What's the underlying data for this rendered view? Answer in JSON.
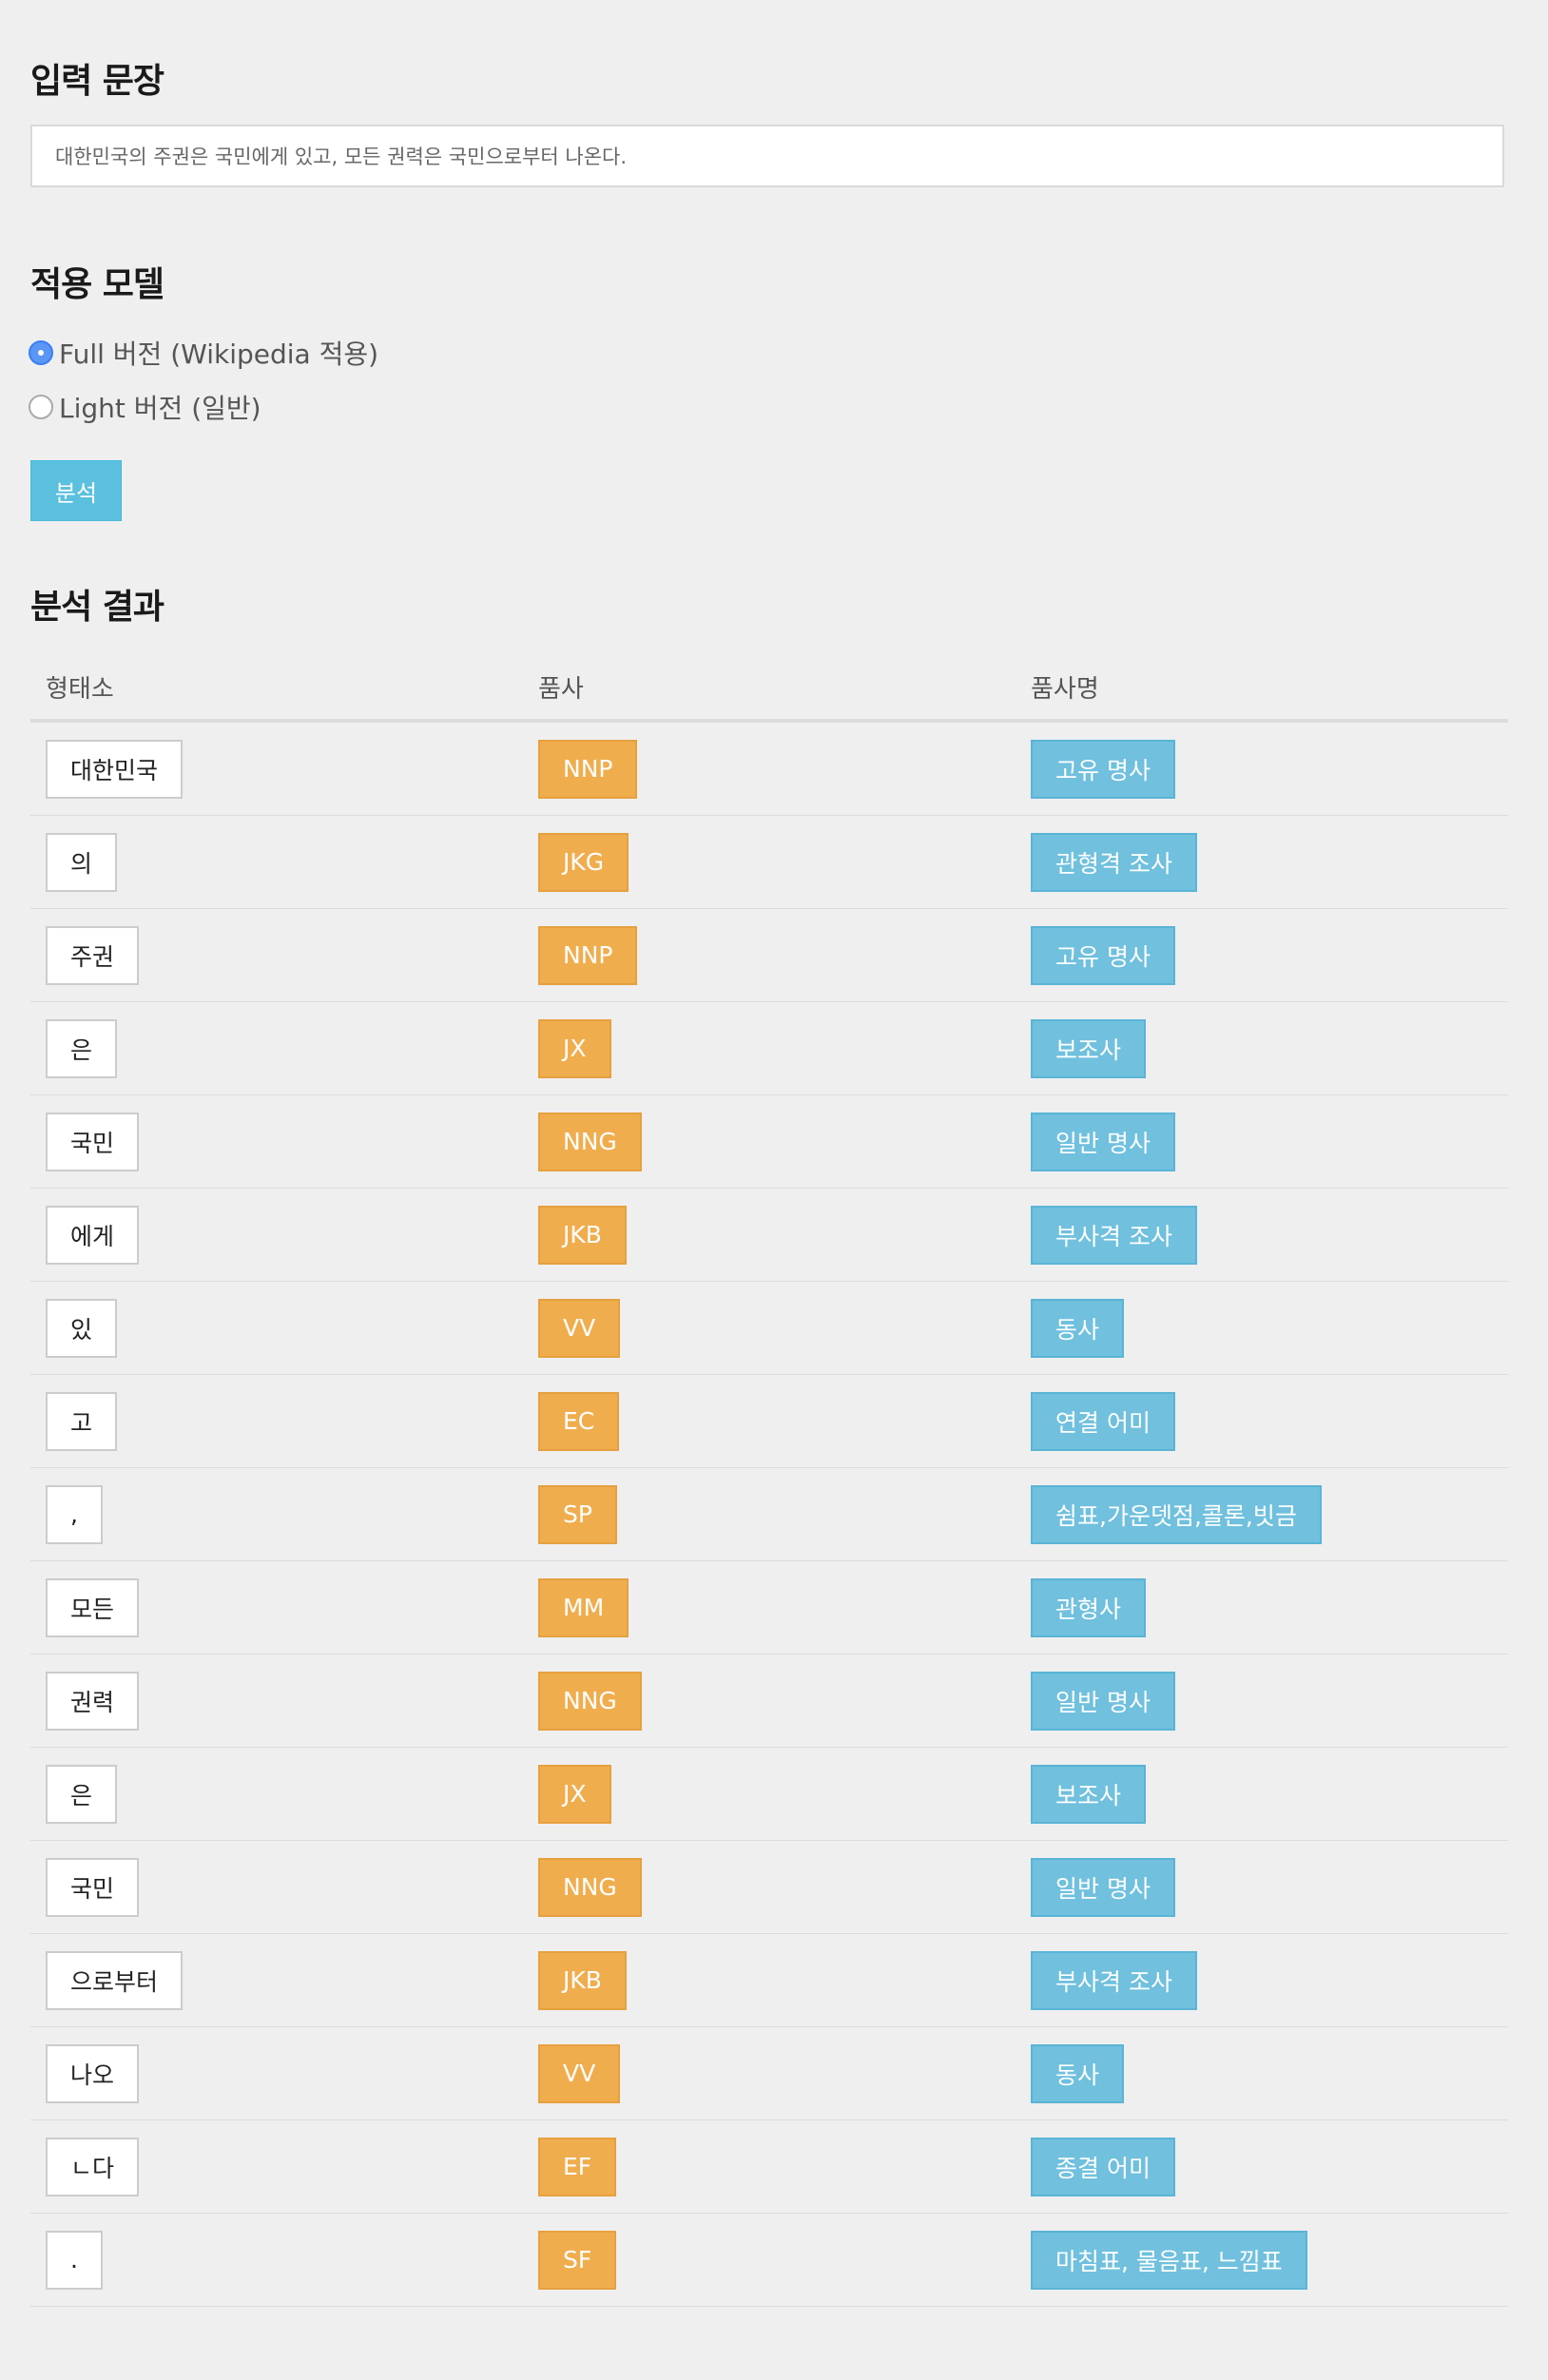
{
  "input_section": {
    "heading": "입력 문장",
    "sentence": "대한민국의 주권은 국민에게 있고, 모든 권력은 국민으로부터 나온다."
  },
  "model_section": {
    "heading": "적용 모델",
    "options": [
      {
        "label": "Full 버전 (Wikipedia 적용)",
        "checked": true
      },
      {
        "label": "Light 버전 (일반)",
        "checked": false
      }
    ]
  },
  "analyze_button": "분석",
  "result_section": {
    "heading": "분석 결과",
    "columns": [
      "형태소",
      "품사",
      "품사명"
    ],
    "rows": [
      [
        "대한민국",
        "NNP",
        "고유 명사"
      ],
      [
        "의",
        "JKG",
        "관형격 조사"
      ],
      [
        "주권",
        "NNP",
        "고유 명사"
      ],
      [
        "은",
        "JX",
        "보조사"
      ],
      [
        "국민",
        "NNG",
        "일반 명사"
      ],
      [
        "에게",
        "JKB",
        "부사격 조사"
      ],
      [
        "있",
        "VV",
        "동사"
      ],
      [
        "고",
        "EC",
        "연결 어미"
      ],
      [
        ",",
        "SP",
        "쉼표,가운뎃점,콜론,빗금"
      ],
      [
        "모든",
        "MM",
        "관형사"
      ],
      [
        "권력",
        "NNG",
        "일반 명사"
      ],
      [
        "은",
        "JX",
        "보조사"
      ],
      [
        "국민",
        "NNG",
        "일반 명사"
      ],
      [
        "으로부터",
        "JKB",
        "부사격 조사"
      ],
      [
        "나오",
        "VV",
        "동사"
      ],
      [
        "ㄴ다",
        "EF",
        "종결 어미"
      ],
      [
        ".",
        "SF",
        "마침표, 물음표, 느낌표"
      ]
    ]
  },
  "colors": {
    "background": "#efefef",
    "radio_checked": "#5a96f5",
    "button": "#5bc0de",
    "pos_tag": "#f0ad4e",
    "pos_name_tag": "#70c0de"
  }
}
